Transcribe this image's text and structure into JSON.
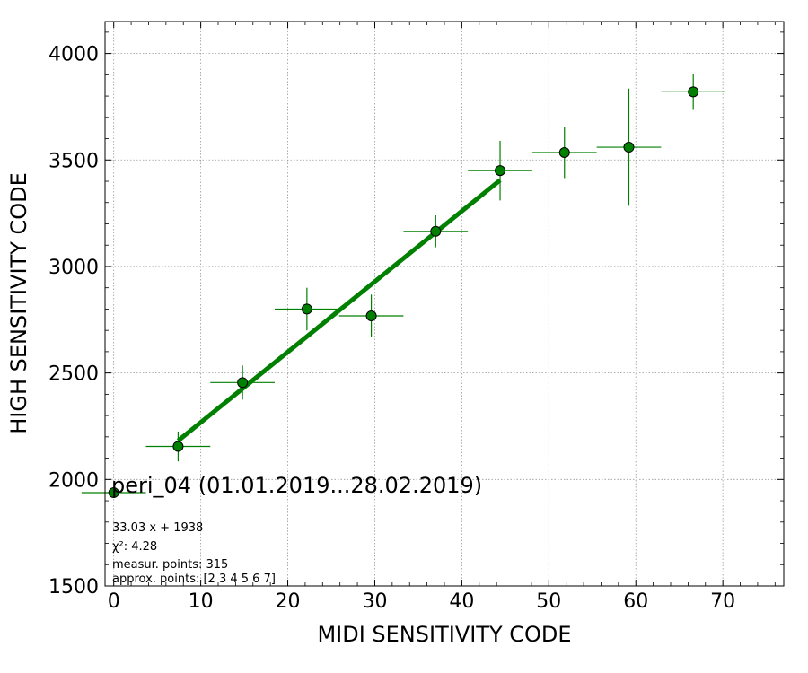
{
  "chart_data": {
    "type": "scatter",
    "title": "peri_04 (01.01.2019...28.02.2019)",
    "xlabel": "MIDI SENSITIVITY CODE",
    "ylabel": "HIGH SENSITIVITY CODE",
    "xlim": [
      -1,
      77
    ],
    "ylim": [
      1500,
      4150
    ],
    "xticks": [
      0,
      10,
      20,
      30,
      40,
      50,
      60,
      70
    ],
    "yticks": [
      1500,
      2000,
      2500,
      3000,
      3500,
      4000
    ],
    "grid": true,
    "grid_style": "dotted",
    "colors": {
      "points": "#008000",
      "fit": "#008000",
      "point_edge": "#000000",
      "grid": "#999999"
    },
    "series": [
      {
        "type": "errorbar",
        "points": [
          {
            "x": 0.0,
            "y": 1938,
            "xerr": 3.7,
            "yerr": 0
          },
          {
            "x": 7.4,
            "y": 2155,
            "xerr": 3.7,
            "yerr": 70
          },
          {
            "x": 14.8,
            "y": 2455,
            "xerr": 3.7,
            "yerr": 80
          },
          {
            "x": 22.2,
            "y": 2800,
            "xerr": 3.7,
            "yerr": 100
          },
          {
            "x": 29.6,
            "y": 2768,
            "xerr": 3.7,
            "yerr": 100
          },
          {
            "x": 37.0,
            "y": 3165,
            "xerr": 3.7,
            "yerr": 75
          },
          {
            "x": 44.4,
            "y": 3450,
            "xerr": 3.7,
            "yerr": 140
          },
          {
            "x": 51.8,
            "y": 3535,
            "xerr": 3.7,
            "yerr": 120
          },
          {
            "x": 59.2,
            "y": 3560,
            "xerr": 3.7,
            "yerr": 275
          },
          {
            "x": 66.6,
            "y": 3820,
            "xerr": 3.7,
            "yerr": 85
          }
        ]
      },
      {
        "type": "line",
        "x": [
          7.4,
          44.4
        ],
        "y": [
          2182,
          3405
        ]
      }
    ],
    "annotations": [
      "33.03 x + 1938",
      "χ²: 4.28",
      "measur. points: 315",
      "approx. points: [2 3 4 5 6 7]"
    ]
  }
}
